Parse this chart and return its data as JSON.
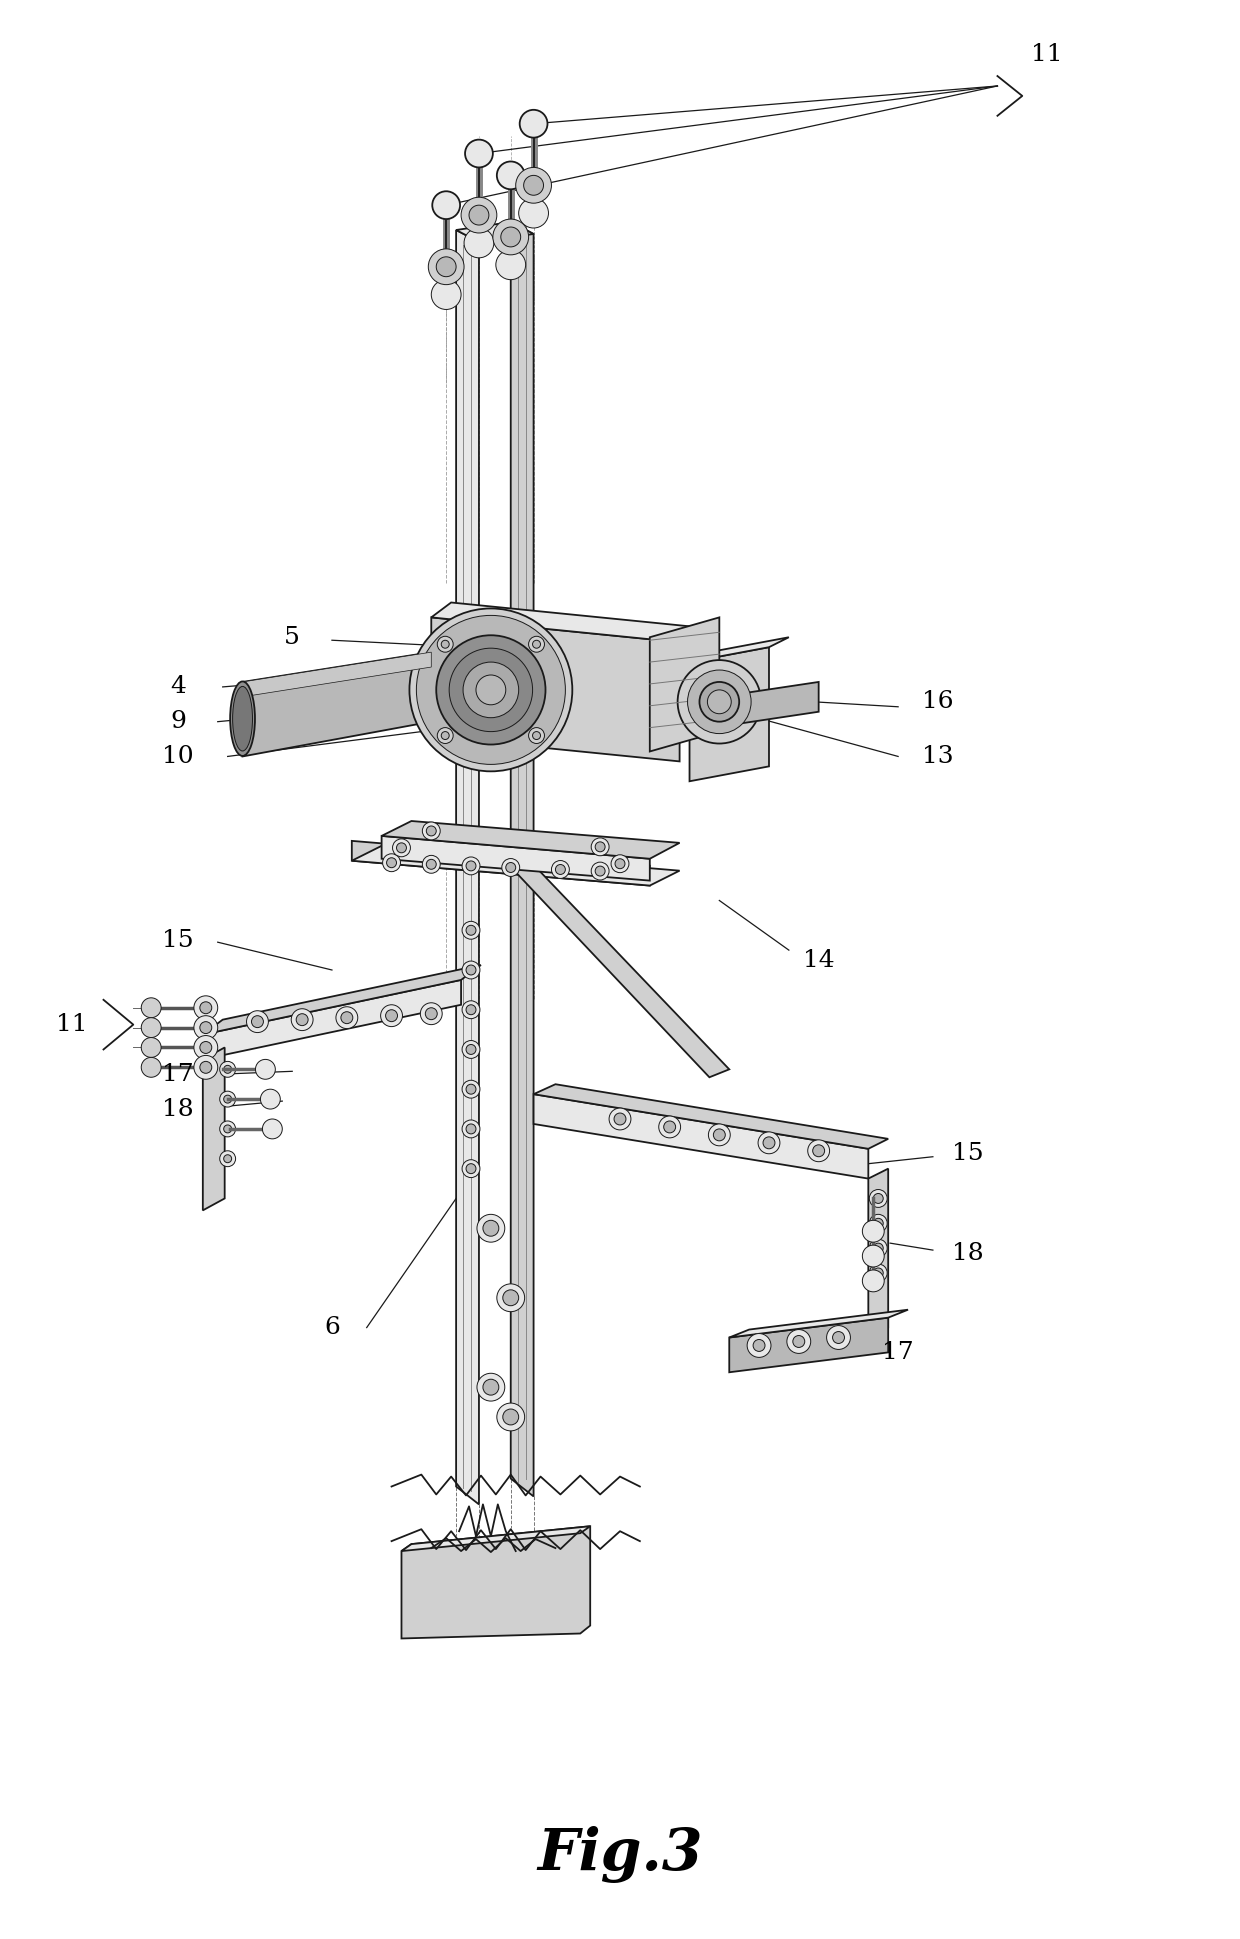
{
  "title": "Fig.3",
  "title_fontsize": 42,
  "bg_color": "#ffffff",
  "line_color": "#1a1a1a",
  "figsize": [
    12.4,
    19.39
  ],
  "dpi": 100,
  "lw_main": 1.3,
  "lw_thin": 0.7,
  "lw_detail": 0.5,
  "label_fontsize": 18,
  "fill_light": "#e8e8e8",
  "fill_mid": "#d0d0d0",
  "fill_dark": "#b8b8b8",
  "fill_darkest": "#909090"
}
